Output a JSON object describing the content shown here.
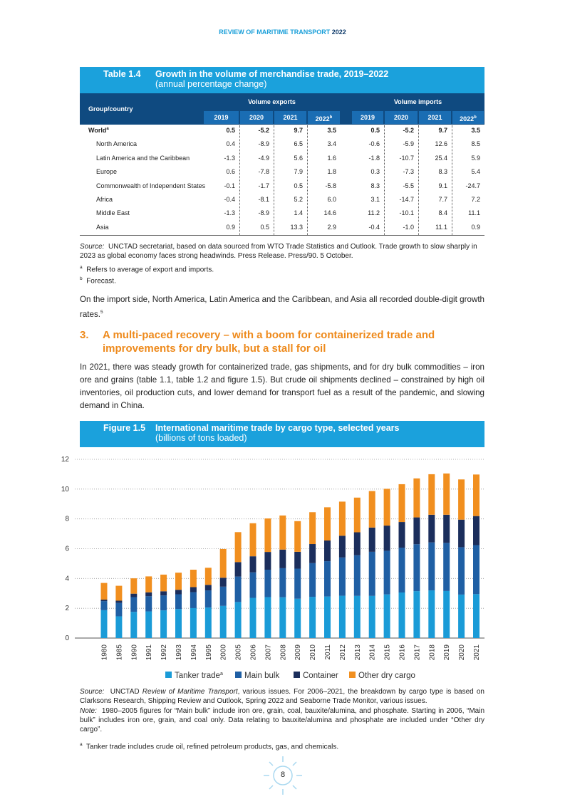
{
  "header": {
    "title": "REVIEW OF MARITIME TRANSPORT",
    "year": "2022"
  },
  "table": {
    "label": "Table 1.4",
    "title": "Growth in the volume of merchandise trade, 2019–2022",
    "subtitle": "(annual percentage change)",
    "group_header": "Group/country",
    "exports_header": "Volume exports",
    "imports_header": "Volume imports",
    "years": [
      "2019",
      "2020",
      "2021",
      "2022"
    ],
    "forecast_mark": "b",
    "rows": [
      {
        "name": "World",
        "mark": "a",
        "exports": [
          "0.5",
          "-5.2",
          "9.7",
          "3.5"
        ],
        "imports": [
          "0.5",
          "-5.2",
          "9.7",
          "3.5"
        ]
      },
      {
        "name": "North America",
        "exports": [
          "0.4",
          "-8.9",
          "6.5",
          "3.4"
        ],
        "imports": [
          "-0.6",
          "-5.9",
          "12.6",
          "8.5"
        ]
      },
      {
        "name": "Latin America and the Caribbean",
        "exports": [
          "-1.3",
          "-4.9",
          "5.6",
          "1.6"
        ],
        "imports": [
          "-1.8",
          "-10.7",
          "25.4",
          "5.9"
        ]
      },
      {
        "name": "Europe",
        "exports": [
          "0.6",
          "-7.8",
          "7.9",
          "1.8"
        ],
        "imports": [
          "0.3",
          "-7.3",
          "8.3",
          "5.4"
        ]
      },
      {
        "name": "Commonwealth of Independent States",
        "exports": [
          "-0.1",
          "-1.7",
          "0.5",
          "-5.8"
        ],
        "imports": [
          "8.3",
          "-5.5",
          "9.1",
          "-24.7"
        ]
      },
      {
        "name": "Africa",
        "exports": [
          "-0.4",
          "-8.1",
          "5.2",
          "6.0"
        ],
        "imports": [
          "3.1",
          "-14.7",
          "7.7",
          "7.2"
        ]
      },
      {
        "name": "Middle East",
        "exports": [
          "-1.3",
          "-8.9",
          "1.4",
          "14.6"
        ],
        "imports": [
          "11.2",
          "-10.1",
          "8.4",
          "11.1"
        ]
      },
      {
        "name": "Asia",
        "exports": [
          "0.9",
          "0.5",
          "13.3",
          "2.9"
        ],
        "imports": [
          "-0.4",
          "-1.0",
          "11.1",
          "0.9"
        ]
      }
    ],
    "source_label": "Source:",
    "source": "UNCTAD secretariat, based on data sourced from WTO Trade Statistics and Outlook. Trade growth to slow sharply in 2023 as global economy faces strong headwinds. Press Release. Press/90. 5 October.",
    "notes": [
      {
        "mark": "a",
        "text": "Refers to average of export and imports."
      },
      {
        "mark": "b",
        "text": "Forecast."
      }
    ]
  },
  "paragraph1": {
    "text": "On the import side, North America, Latin America and the Caribbean, and Asia all recorded double-digit growth rates.",
    "ref": "5"
  },
  "section": {
    "number": "3.",
    "title": "A multi-paced recovery – with a boom for containerized trade and improvements for dry bulk, but a stall for oil"
  },
  "paragraph2": "In 2021, there was steady growth for containerized trade, gas shipments, and for dry bulk commodities – iron ore and grains (table 1.1, table 1.2 and figure 1.5). But crude oil shipments declined – constrained by high oil inventories, oil production cuts, and lower demand for transport fuel as a result of the pandemic, and slowing demand in China.",
  "figure": {
    "label": "Figure 1.5",
    "title": "International maritime trade by cargo type, selected years",
    "subtitle": "(billions of tons loaded)",
    "source_label": "Source:",
    "source_parts": [
      "UNCTAD ",
      "Review of Maritime Transport",
      ", various issues. For 2006–2021, the breakdown by cargo type is based on Clarksons Research, Shipping Review and Outlook, Spring 2022 and Seaborne Trade Monitor, various issues."
    ],
    "note_label": "Note:",
    "note": "1980–2005 figures for “Main bulk” include iron ore, grain, coal, bauxite/alumina, and phosphate. Starting in 2006, “Main bulk” includes iron ore, grain, and coal only. Data relating to bauxite/alumina and phosphate are included under “Other dry cargo”.",
    "footnote": {
      "mark": "a",
      "text": "Tanker trade includes crude oil, refined petroleum products, gas, and chemicals."
    }
  },
  "chart_data": {
    "type": "stacked_bar",
    "categories": [
      "1980",
      "1985",
      "1990",
      "1991",
      "1992",
      "1993",
      "1994",
      "1995",
      "2000",
      "2005",
      "2006",
      "2007",
      "2008",
      "2009",
      "2010",
      "2011",
      "2012",
      "2013",
      "2014",
      "2015",
      "2016",
      "2017",
      "2018",
      "2019",
      "2020",
      "2021"
    ],
    "series": [
      {
        "name": "Tanker trade",
        "mark": "a",
        "color": "#1a9bd7",
        "values": [
          1.87,
          1.46,
          1.76,
          1.79,
          1.86,
          1.95,
          2.01,
          2.05,
          2.16,
          2.42,
          2.7,
          2.75,
          2.74,
          2.64,
          2.77,
          2.79,
          2.84,
          2.83,
          2.83,
          2.93,
          3.06,
          3.15,
          3.2,
          3.16,
          2.92,
          2.95
        ]
      },
      {
        "name": "Main bulk",
        "color": "#1f5fa4",
        "values": [
          0.61,
          0.9,
          0.99,
          1.02,
          1.0,
          0.99,
          1.07,
          1.15,
          1.29,
          1.71,
          1.71,
          1.84,
          1.95,
          2.02,
          2.26,
          2.37,
          2.57,
          2.73,
          2.96,
          2.93,
          3.01,
          3.15,
          3.22,
          3.23,
          3.18,
          3.29
        ]
      },
      {
        "name": "Container",
        "color": "#1b2e5c",
        "values": [
          0.1,
          0.15,
          0.23,
          0.26,
          0.28,
          0.3,
          0.34,
          0.37,
          0.6,
          0.97,
          1.08,
          1.19,
          1.25,
          1.13,
          1.28,
          1.39,
          1.46,
          1.54,
          1.63,
          1.69,
          1.72,
          1.8,
          1.86,
          1.89,
          1.85,
          1.95
        ]
      },
      {
        "name": "Other dry cargo",
        "color": "#f18f1f",
        "values": [
          1.12,
          1.0,
          1.03,
          1.07,
          1.12,
          1.15,
          1.17,
          1.15,
          1.93,
          2.01,
          2.22,
          2.25,
          2.29,
          2.06,
          2.14,
          2.23,
          2.29,
          2.33,
          2.45,
          2.47,
          2.54,
          2.62,
          2.72,
          2.77,
          2.7,
          2.79
        ]
      }
    ],
    "ylim": [
      0,
      12
    ],
    "yticks": [
      0,
      2,
      4,
      6,
      8,
      10,
      12
    ],
    "grid": true
  },
  "page_number": "8"
}
